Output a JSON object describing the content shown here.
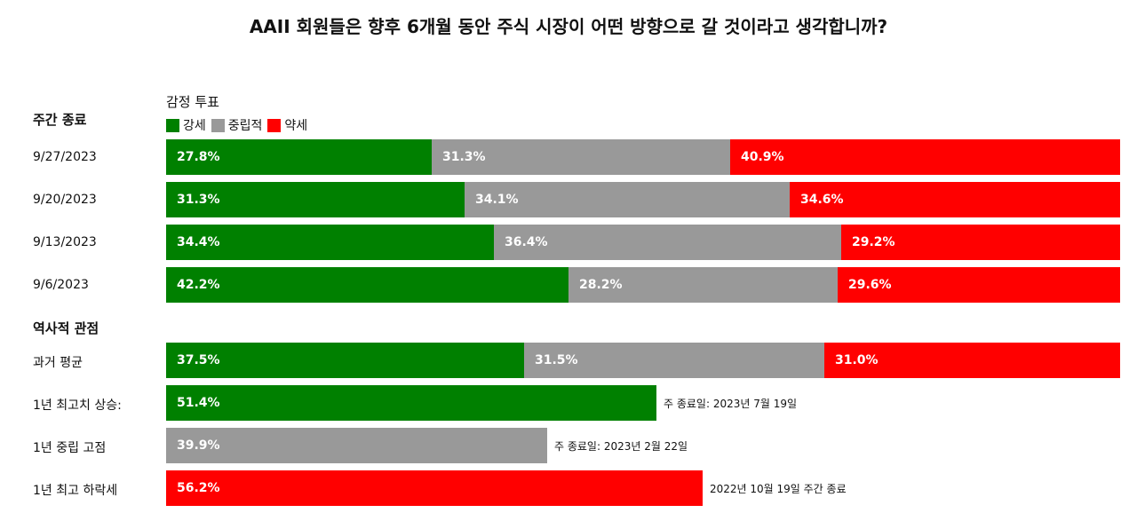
{
  "title": "AAII 회원들은 향후 6개월 동안 주식 시장이 어떤 방향으로 갈 것이라고 생각합니까?",
  "legend": {
    "title": "감정 투표",
    "items": [
      {
        "label": "강세",
        "color": "#008000"
      },
      {
        "label": "중립적",
        "color": "#999999"
      },
      {
        "label": "약세",
        "color": "#ff0000"
      }
    ]
  },
  "sections": {
    "weekly": "주간 종료",
    "historical": "역사적 관점"
  },
  "chart_data": {
    "type": "bar",
    "stacked": true,
    "orientation": "horizontal",
    "weekly": [
      {
        "label": "9/27/2023",
        "values": [
          27.8,
          31.3,
          40.9
        ],
        "texts": [
          "27.8%",
          "31.3%",
          "40.9%"
        ]
      },
      {
        "label": "9/20/2023",
        "values": [
          31.3,
          34.1,
          34.6
        ],
        "texts": [
          "31.3%",
          "34.1%",
          "34.6%"
        ]
      },
      {
        "label": "9/13/2023",
        "values": [
          34.4,
          36.4,
          29.2
        ],
        "texts": [
          "34.4%",
          "36.4%",
          "29.2%"
        ]
      },
      {
        "label": "9/6/2023",
        "values": [
          42.2,
          28.2,
          29.6
        ],
        "texts": [
          "42.2%",
          "28.2%",
          "29.6%"
        ]
      }
    ],
    "historical_average": {
      "label": "과거 평균",
      "values": [
        37.5,
        31.5,
        31.0
      ],
      "texts": [
        "37.5%",
        "31.5%",
        "31.0%"
      ]
    },
    "extremes": [
      {
        "label": "1년 최고치 상승:",
        "value": 51.4,
        "text": "51.4%",
        "color": "#008000",
        "note": "주 종료일: 2023년 7월 19일"
      },
      {
        "label": "1년 중립 고점",
        "value": 39.9,
        "text": "39.9%",
        "color": "#999999",
        "note": "주 종료일: 2023년 2월 22일"
      },
      {
        "label": "1년 최고 하락세",
        "value": 56.2,
        "text": "56.2%",
        "color": "#ff0000",
        "note": "2022년 10월 19일 주간 종료"
      }
    ]
  }
}
